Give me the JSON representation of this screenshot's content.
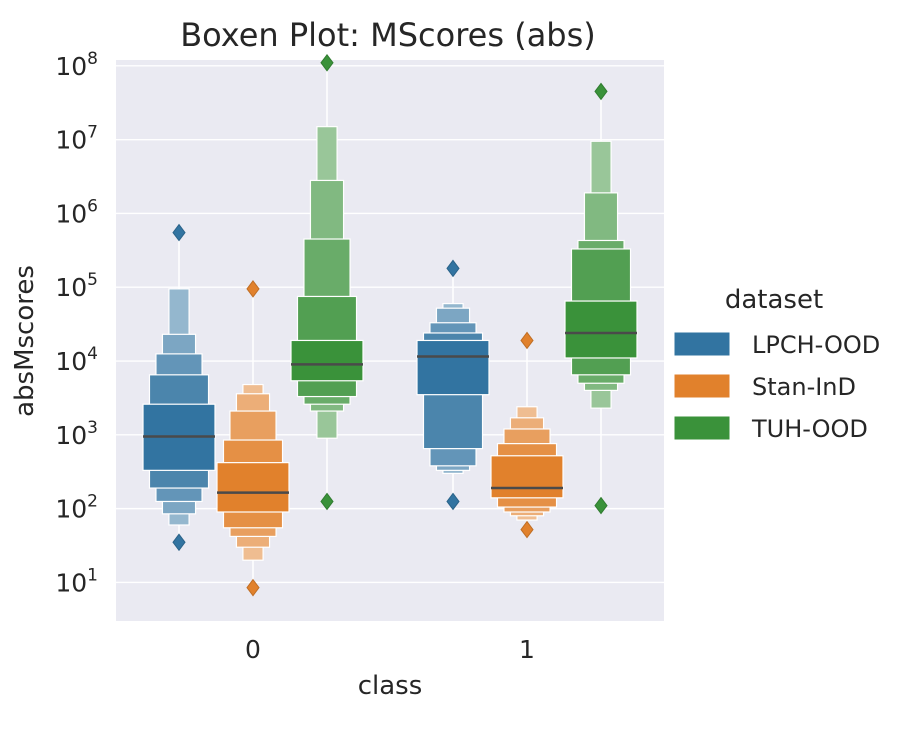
{
  "chart_data": {
    "type": "boxen",
    "title": "Boxen Plot: MScores (abs)",
    "xlabel": "class",
    "ylabel": "absMscores",
    "categories": [
      "0",
      "1"
    ],
    "y_scale": "log",
    "ylim": [
      3,
      120000000
    ],
    "y_ticks": [
      {
        "value": 10,
        "base": "10",
        "exp": "1"
      },
      {
        "value": 100,
        "base": "10",
        "exp": "2"
      },
      {
        "value": 1000,
        "base": "10",
        "exp": "3"
      },
      {
        "value": 10000,
        "base": "10",
        "exp": "4"
      },
      {
        "value": 100000,
        "base": "10",
        "exp": "5"
      },
      {
        "value": 1000000,
        "base": "10",
        "exp": "6"
      },
      {
        "value": 10000000,
        "base": "10",
        "exp": "7"
      },
      {
        "value": 100000000,
        "base": "10",
        "exp": "8"
      }
    ],
    "grid": true,
    "legend": {
      "title": "dataset",
      "placement": "right"
    },
    "colors": {
      "background": "#eaeaf2",
      "grid": "#ffffff",
      "median": "#4a4a4a"
    },
    "series": [
      {
        "name": "LPCH-OOD",
        "color": "#3274a1",
        "data": [
          {
            "category": "0",
            "median": 950,
            "levels": [
              [
                330,
                2600
              ],
              [
                190,
                6500
              ],
              [
                125,
                12500
              ],
              [
                85,
                23000
              ],
              [
                60,
                95000
              ]
            ],
            "outliers": [
              35,
              550000
            ]
          },
          {
            "category": "1",
            "median": 11500,
            "levels": [
              [
                3500,
                19000
              ],
              [
                650,
                24000
              ],
              [
                380,
                33000
              ],
              [
                330,
                52000
              ],
              [
                300,
                60000
              ]
            ],
            "outliers": [
              125,
              180000
            ]
          }
        ]
      },
      {
        "name": "Stan-InD",
        "color": "#e1812c",
        "data": [
          {
            "category": "0",
            "median": 165,
            "levels": [
              [
                90,
                420
              ],
              [
                55,
                850
              ],
              [
                42,
                2100
              ],
              [
                30,
                3600
              ],
              [
                20,
                4800
              ]
            ],
            "outliers": [
              8.5,
              95000
            ]
          },
          {
            "category": "1",
            "median": 190,
            "levels": [
              [
                140,
                520
              ],
              [
                105,
                760
              ],
              [
                90,
                1200
              ],
              [
                80,
                1700
              ],
              [
                70,
                2400
              ]
            ],
            "outliers": [
              52,
              19000
            ]
          }
        ]
      },
      {
        "name": "TUH-OOD",
        "color": "#3a923a",
        "data": [
          {
            "category": "0",
            "median": 9000,
            "levels": [
              [
                5400,
                19000
              ],
              [
                3300,
                75000
              ],
              [
                2600,
                450000
              ],
              [
                2100,
                2800000
              ],
              [
                900,
                15000000
              ]
            ],
            "outliers": [
              125,
              110000000
            ]
          },
          {
            "category": "1",
            "median": 24000,
            "levels": [
              [
                11000,
                65000
              ],
              [
                6500,
                330000
              ],
              [
                5000,
                430000
              ],
              [
                4000,
                1900000
              ],
              [
                2300,
                9500000
              ]
            ],
            "outliers": [
              110,
              45000000
            ]
          }
        ]
      }
    ]
  }
}
